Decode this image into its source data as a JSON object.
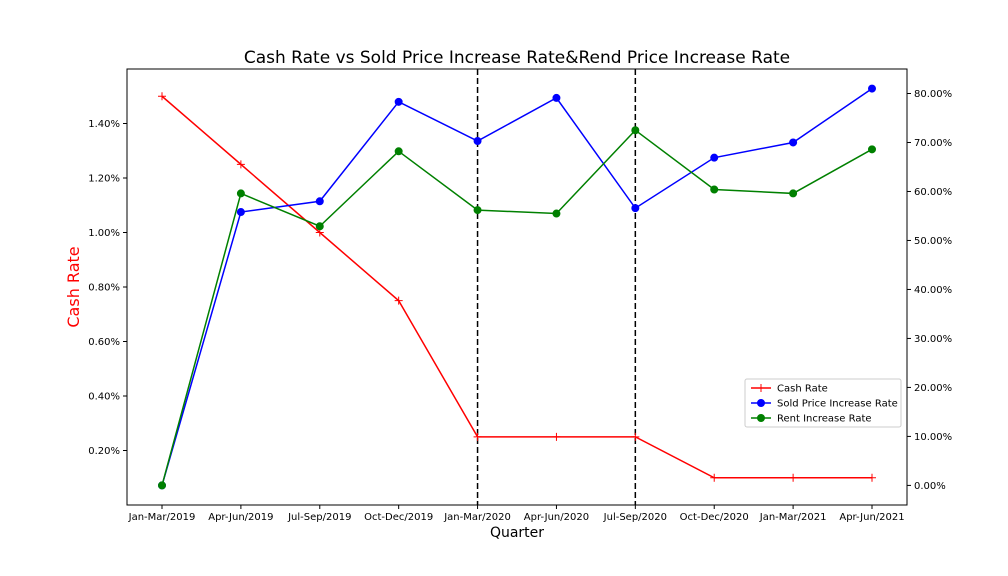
{
  "chart_data": {
    "type": "line",
    "title": "Cash Rate vs Sold Price Increase Rate&Rend Price Increase Rate",
    "xlabel": "Quarter",
    "ylabel_left": "Cash Rate",
    "ylabel_right": "",
    "categories": [
      "Jan-Mar/2019",
      "Apr-Jun/2019",
      "Jul-Sep/2019",
      "Oct-Dec/2019",
      "Jan-Mar/2020",
      "Apr-Jun/2020",
      "Jul-Sep/2020",
      "Oct-Dec/2020",
      "Jan-Mar/2021",
      "Apr-Jun/2021"
    ],
    "left_axis": {
      "ylim": [
        0.0,
        1.6
      ],
      "ticks": [
        0.2,
        0.4,
        0.6,
        0.8,
        1.0,
        1.2,
        1.4
      ],
      "tick_labels": [
        "0.20%",
        "0.40%",
        "0.60%",
        "0.80%",
        "1.00%",
        "1.20%",
        "1.40%"
      ]
    },
    "right_axis": {
      "ylim": [
        -4.0,
        85.0
      ],
      "ticks": [
        0,
        10,
        20,
        30,
        40,
        50,
        60,
        70,
        80
      ],
      "tick_labels": [
        "0.00%",
        "10.00%",
        "20.00%",
        "30.00%",
        "40.00%",
        "50.00%",
        "60.00%",
        "70.00%",
        "80.00%"
      ]
    },
    "series": [
      {
        "name": "Cash Rate",
        "axis": "left",
        "color": "#ff0000",
        "marker": "plus",
        "values": [
          1.5,
          1.25,
          1.0,
          0.75,
          0.25,
          0.25,
          0.25,
          0.1,
          0.1,
          0.1
        ]
      },
      {
        "name": "Sold Price Increase Rate",
        "axis": "right",
        "color": "#0000ff",
        "marker": "circle",
        "values": [
          0.0,
          55.8,
          58.0,
          78.3,
          70.3,
          79.1,
          56.6,
          66.9,
          70.0,
          81.0
        ]
      },
      {
        "name": "Rent Increase Rate",
        "axis": "right",
        "color": "#008000",
        "marker": "circle",
        "values": [
          0.0,
          59.6,
          52.9,
          68.2,
          56.2,
          55.5,
          72.5,
          60.4,
          59.6,
          68.6
        ]
      }
    ],
    "vertical_lines": [
      "Jan-Mar/2020",
      "Jul-Sep/2020"
    ],
    "vertical_line_style": "dashed",
    "title_color": "#000000",
    "ylabel_left_color": "#ff0000",
    "legend_position": "lower-right",
    "grid": false
  }
}
